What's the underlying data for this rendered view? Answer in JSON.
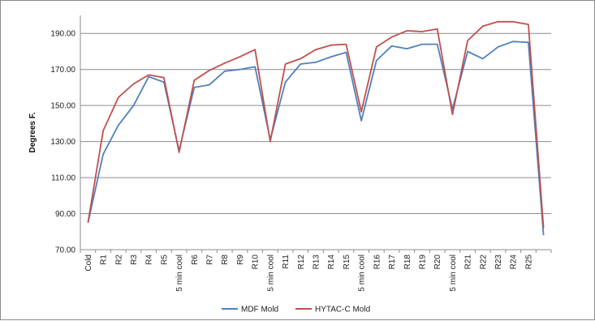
{
  "chart_data": {
    "type": "line",
    "title": "",
    "xlabel": "",
    "ylabel": "Degrees F.",
    "ylim": [
      70,
      200
    ],
    "yticks": [
      "70.00",
      "90.00",
      "110.00",
      "130.00",
      "150.00",
      "170.00",
      "190.00"
    ],
    "grid": "horizontal",
    "legend": "bottom",
    "categories": [
      "Cold",
      "R1",
      "R2",
      "R3",
      "R4",
      "R5",
      "5 min cool",
      "R6",
      "R7",
      "R8",
      "R9",
      "R10",
      "5 min cool",
      "R11",
      "R12",
      "R13",
      "R14",
      "R15",
      "5 min cool",
      "R16",
      "R17",
      "R18",
      "R19",
      "R20",
      "5 min cool",
      "R21",
      "R22",
      "R23",
      "R24",
      "R25",
      ""
    ],
    "series": [
      {
        "name": "MDF Mold",
        "color": "#4f81bd",
        "values": [
          85,
          123,
          139,
          150,
          166,
          163,
          125,
          160,
          161.5,
          169,
          170,
          171.5,
          131,
          163,
          173,
          174,
          177,
          179.5,
          141.5,
          175,
          183,
          181.5,
          184,
          184,
          148,
          180,
          176,
          182.5,
          185.5,
          185,
          78
        ]
      },
      {
        "name": "HYTAC-C Mold",
        "color": "#c0504d",
        "values": [
          85,
          136,
          154.5,
          162,
          167,
          165.5,
          124,
          164,
          169.5,
          173.5,
          177,
          181,
          130,
          173,
          176,
          181,
          183.5,
          184,
          146.5,
          182.5,
          188,
          191.5,
          191,
          192.5,
          145,
          186,
          194,
          196.5,
          196.5,
          195,
          82
        ]
      }
    ]
  }
}
